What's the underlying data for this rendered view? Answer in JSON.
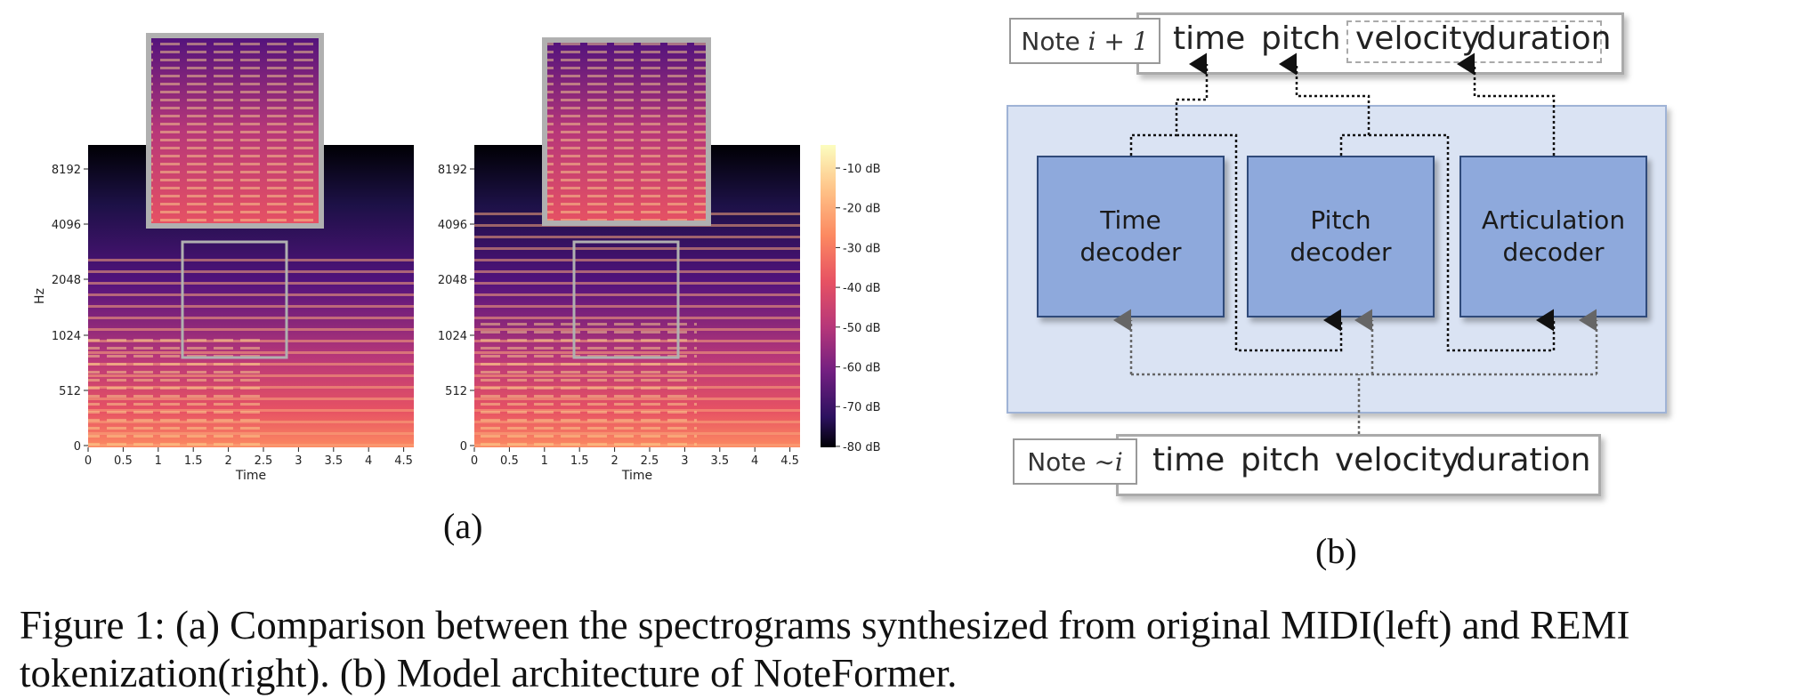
{
  "figure": {
    "panel_a_label": "(a)",
    "panel_b_label": "(b)",
    "caption_line1": "Figure 1: (a) Comparison between the spectrograms synthesized from original MIDI(left) and REMI",
    "caption_line2": "tokenization(right). (b) Model architecture of NoteFormer."
  },
  "spectrograms": {
    "ylabel": "Hz",
    "xlabel": "Time",
    "yticks": [
      "8192",
      "4096",
      "2048",
      "1024",
      "512",
      "0"
    ],
    "xticks": [
      "0",
      "0.5",
      "1",
      "1.5",
      "2",
      "2.5",
      "3",
      "3.5",
      "4",
      "4.5"
    ],
    "colorbar_ticks": [
      "-10 dB",
      "-20 dB",
      "-30 dB",
      "-40 dB",
      "-50 dB",
      "-60 dB",
      "-70 dB",
      "-80 dB"
    ],
    "colors": {
      "low": "#000004",
      "mid": "#b73779",
      "high": "#fcfdbf",
      "zoom_border": "#b0b0b0"
    }
  },
  "architecture": {
    "top_note": {
      "label": "Note",
      "math": "i + 1"
    },
    "top_tokens": {
      "time": "time",
      "pitch": "pitch",
      "velocity": "velocity",
      "duration": "duration"
    },
    "decoders": [
      {
        "line1": "Time",
        "line2": "decoder"
      },
      {
        "line1": "Pitch",
        "line2": "decoder"
      },
      {
        "line1": "Articulation",
        "line2": "decoder"
      }
    ],
    "bottom_note": {
      "label": "Note",
      "math": "∼i"
    },
    "bottom_tokens": {
      "time": "time",
      "pitch": "pitch",
      "velocity": "velocity",
      "duration": "duration"
    },
    "colors": {
      "container": "#dae3f3",
      "decoder": "#8ea9dc"
    }
  }
}
